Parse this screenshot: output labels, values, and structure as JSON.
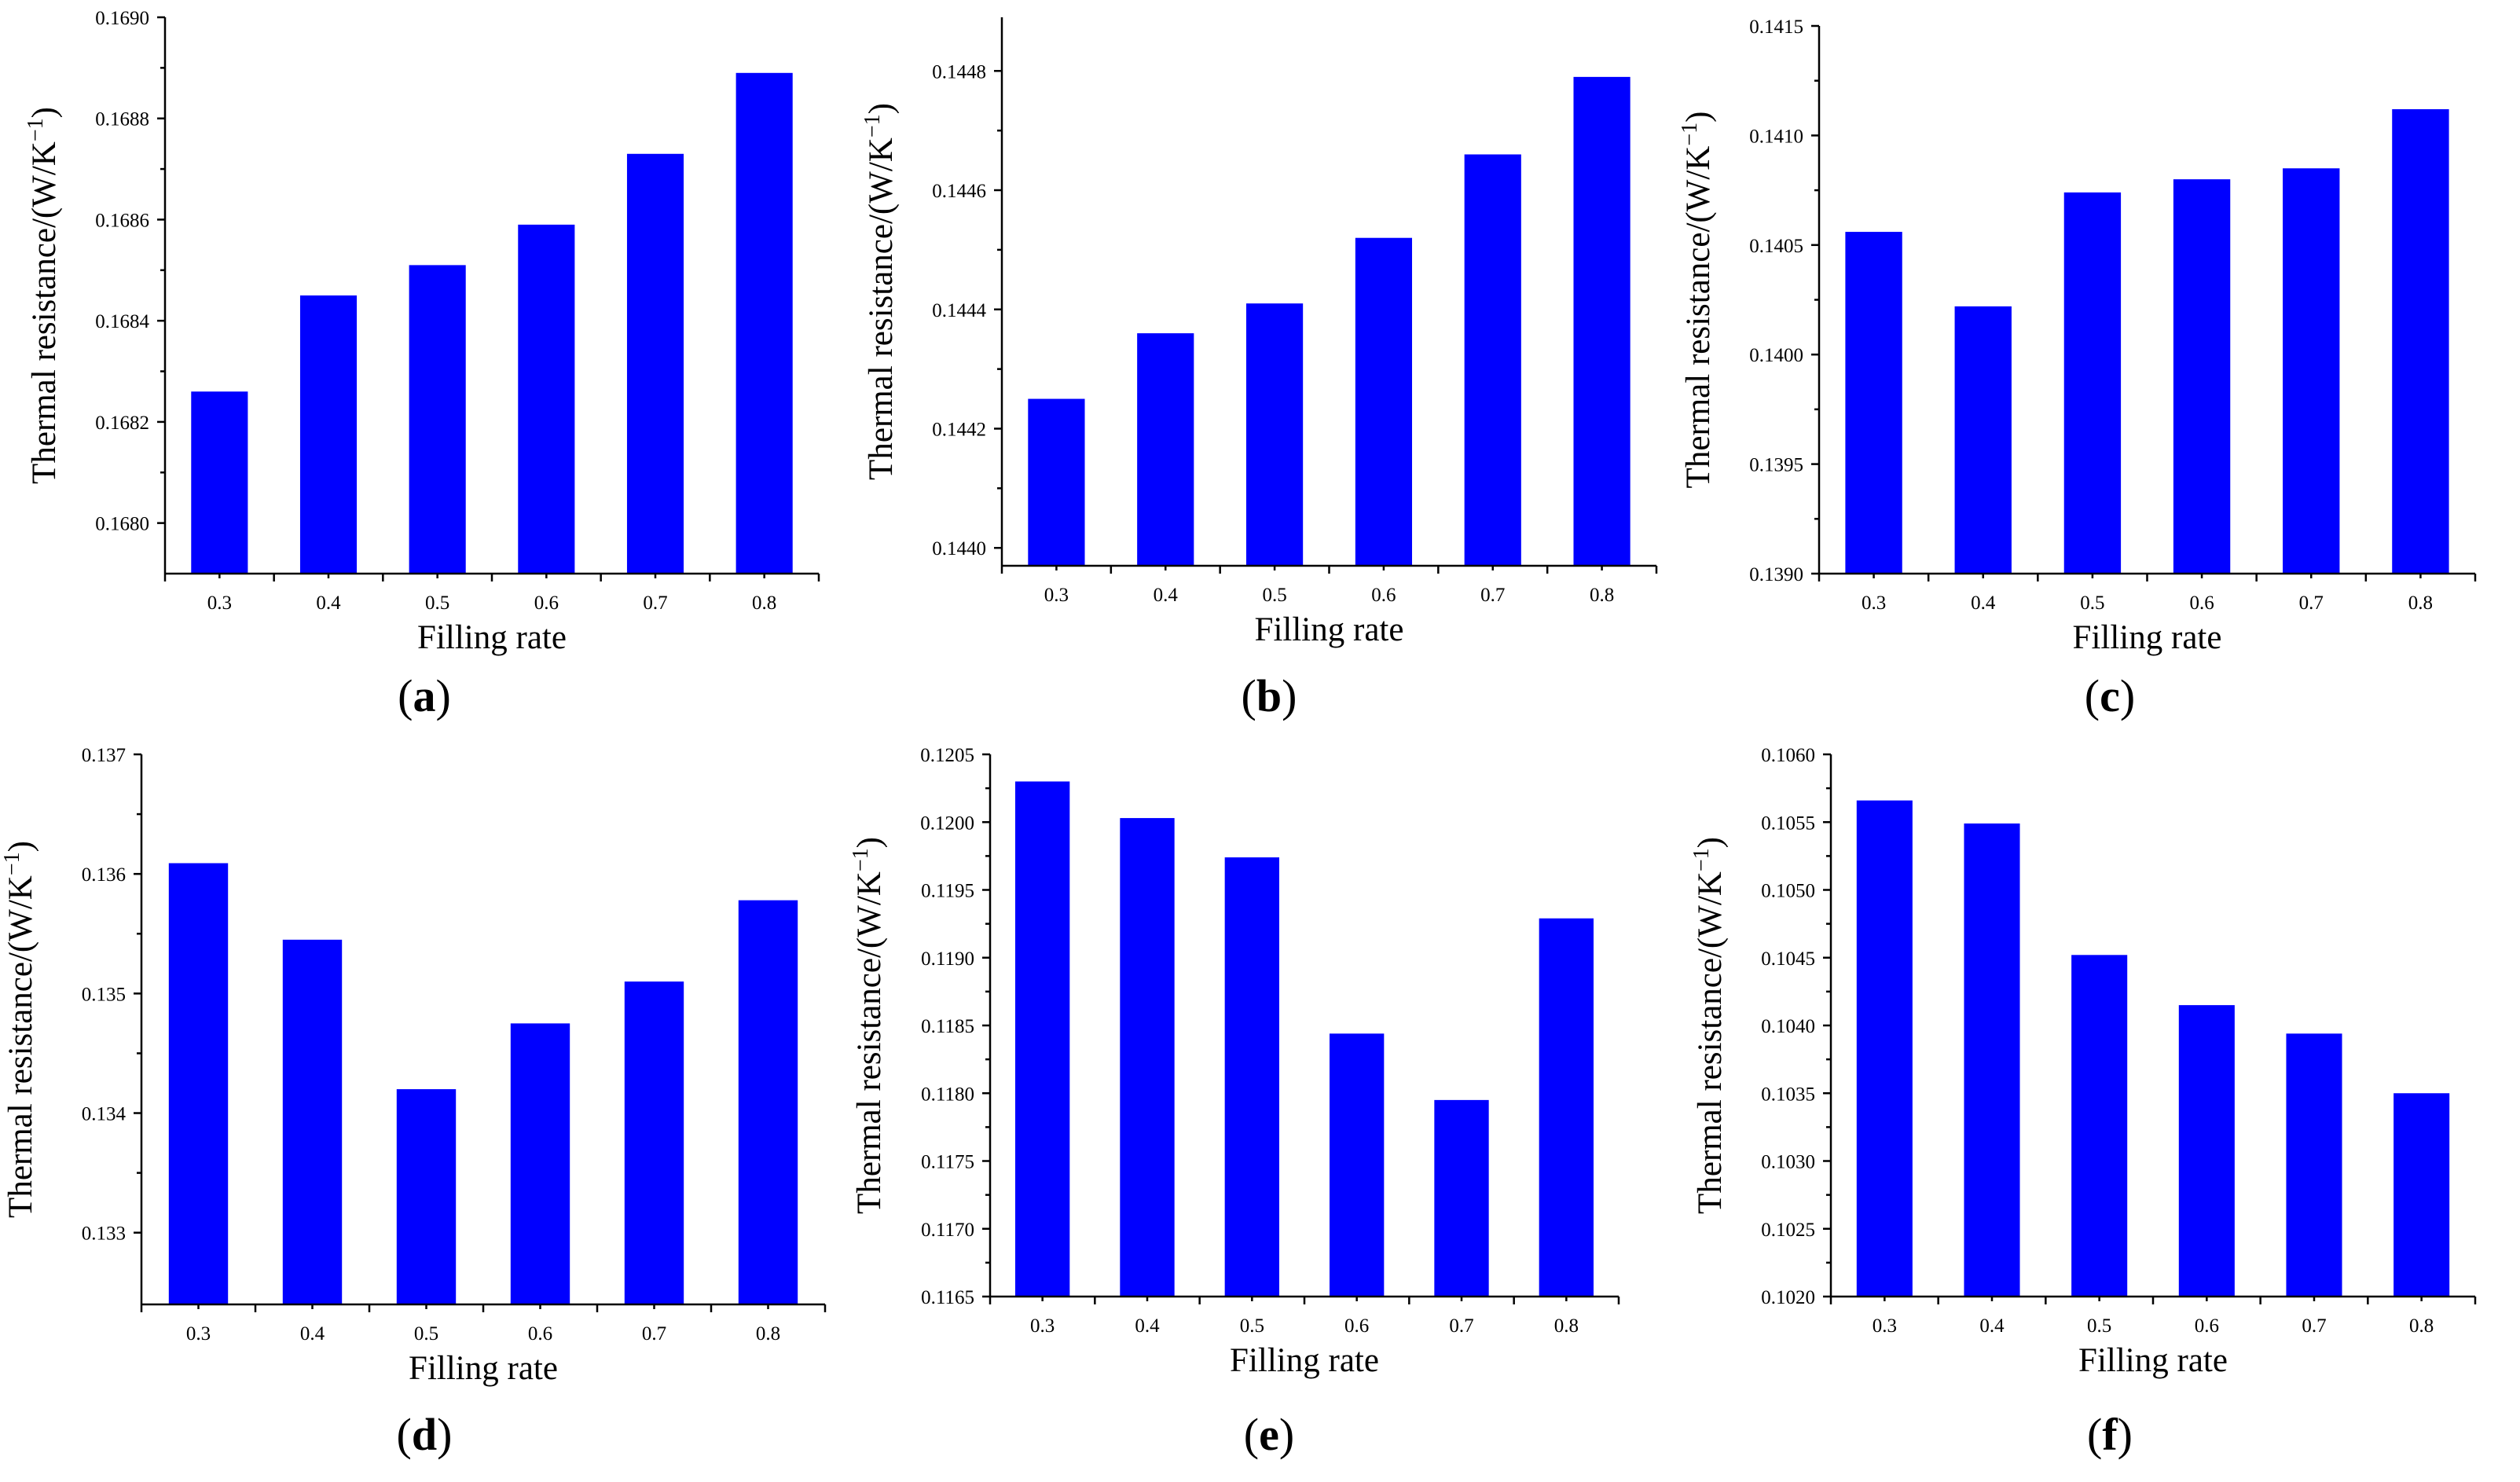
{
  "colors": {
    "bar": "#0000ff",
    "axis": "#000000",
    "background": "#ffffff"
  },
  "chart_data": [
    {
      "type": "bar",
      "panel": "a",
      "categories": [
        "0.3",
        "0.4",
        "0.5",
        "0.6",
        "0.7",
        "0.8"
      ],
      "values": [
        0.16826,
        0.16845,
        0.16851,
        0.16859,
        0.16873,
        0.16889
      ],
      "ylim": [
        0.1679,
        0.169
      ],
      "yticks": [
        "0.1680",
        "0.1682",
        "0.1684",
        "0.1686",
        "0.1688",
        "0.1690"
      ],
      "xlabel": "Filling rate",
      "ylabel_main": "Thermal resistance/(W/K",
      "ylabel_sup": "−1",
      "ylabel_end": ")"
    },
    {
      "type": "bar",
      "panel": "b",
      "categories": [
        "0.3",
        "0.4",
        "0.5",
        "0.6",
        "0.7",
        "0.8"
      ],
      "values": [
        0.14425,
        0.14436,
        0.14441,
        0.14452,
        0.14466,
        0.14479
      ],
      "ylim": [
        0.14397,
        0.14489
      ],
      "yticks": [
        "0.1440",
        "0.1442",
        "0.1444",
        "0.1446",
        "0.1448"
      ],
      "xlabel": "Filling rate",
      "ylabel_main": "Thermal resistance/(W/K",
      "ylabel_sup": "−1",
      "ylabel_end": ")"
    },
    {
      "type": "bar",
      "panel": "c",
      "categories": [
        "0.3",
        "0.4",
        "0.5",
        "0.6",
        "0.7",
        "0.8"
      ],
      "values": [
        0.14056,
        0.14022,
        0.14074,
        0.1408,
        0.14085,
        0.14112
      ],
      "ylim": [
        0.139,
        0.1415
      ],
      "yticks": [
        "0.1390",
        "0.1395",
        "0.1400",
        "0.1405",
        "0.1410",
        "0.1415"
      ],
      "xlabel": "Filling rate",
      "ylabel_main": "Thermal resistance/(W/K",
      "ylabel_sup": "−1",
      "ylabel_end": ")"
    },
    {
      "type": "bar",
      "panel": "d",
      "categories": [
        "0.3",
        "0.4",
        "0.5",
        "0.6",
        "0.7",
        "0.8"
      ],
      "values": [
        0.13609,
        0.13545,
        0.1342,
        0.13475,
        0.1351,
        0.13578
      ],
      "ylim": [
        0.1324,
        0.137
      ],
      "yticks": [
        "0.133",
        "0.134",
        "0.135",
        "0.136",
        "0.137"
      ],
      "xlabel": "Filling rate",
      "ylabel_main": "Thermal resistance/(W/K",
      "ylabel_sup": "−1",
      "ylabel_end": ")"
    },
    {
      "type": "bar",
      "panel": "e",
      "categories": [
        "0.3",
        "0.4",
        "0.5",
        "0.6",
        "0.7",
        "0.8"
      ],
      "values": [
        0.1203,
        0.12003,
        0.11974,
        0.11844,
        0.11795,
        0.11929
      ],
      "ylim": [
        0.1165,
        0.1205
      ],
      "yticks": [
        "0.1165",
        "0.1170",
        "0.1175",
        "0.1180",
        "0.1185",
        "0.1190",
        "0.1195",
        "0.1200",
        "0.1205"
      ],
      "xlabel": "Filling rate",
      "ylabel_main": "Thermal resistance/(W/K",
      "ylabel_sup": "−1",
      "ylabel_end": ")"
    },
    {
      "type": "bar",
      "panel": "f",
      "categories": [
        "0.3",
        "0.4",
        "0.5",
        "0.6",
        "0.7",
        "0.8"
      ],
      "values": [
        0.10566,
        0.10549,
        0.10452,
        0.10415,
        0.10394,
        0.1035
      ],
      "ylim": [
        0.102,
        0.106
      ],
      "yticks": [
        "0.1020",
        "0.1025",
        "0.1030",
        "0.1035",
        "0.1040",
        "0.1045",
        "0.1050",
        "0.1055",
        "0.1060"
      ],
      "xlabel": "Filling rate",
      "ylabel_main": "Thermal resistance/(W/K",
      "ylabel_sup": "−1",
      "ylabel_end": ")"
    }
  ]
}
